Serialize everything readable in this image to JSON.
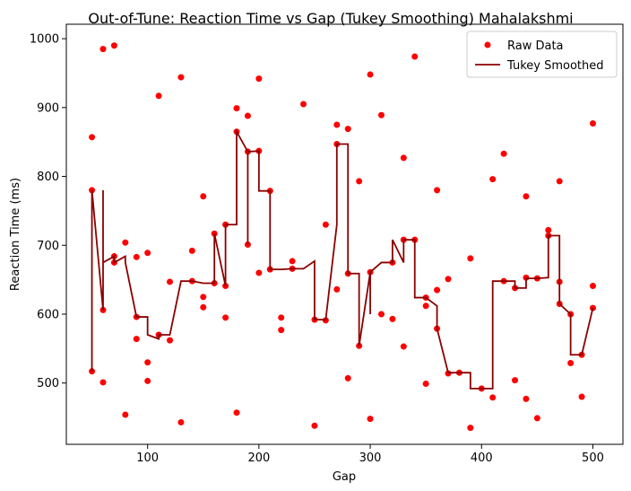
{
  "chart_data": {
    "type": "scatter",
    "title": "Out-of-Tune: Reaction Time vs Gap (Tukey Smoothing) Mahalakshmi",
    "xlabel": "Gap",
    "ylabel": "Reaction Time (ms)",
    "xlim": [
      27,
      527
    ],
    "ylim": [
      411,
      1021
    ],
    "xticks": [
      100,
      200,
      300,
      400,
      500
    ],
    "yticks": [
      500,
      600,
      700,
      800,
      900,
      1000
    ],
    "grid": false,
    "legend_position": "top-right",
    "colors": {
      "raw": "#ff0000",
      "smoothed": "#8b0000"
    },
    "series": [
      {
        "name": "Raw Data",
        "kind": "scatter",
        "points": [
          [
            50,
            857
          ],
          [
            50,
            780
          ],
          [
            50,
            517
          ],
          [
            60,
            985
          ],
          [
            60,
            606
          ],
          [
            60,
            501
          ],
          [
            70,
            990
          ],
          [
            70,
            684
          ],
          [
            70,
            675
          ],
          [
            80,
            704
          ],
          [
            80,
            454
          ],
          [
            90,
            683
          ],
          [
            90,
            596
          ],
          [
            90,
            564
          ],
          [
            100,
            689
          ],
          [
            100,
            530
          ],
          [
            100,
            503
          ],
          [
            110,
            917
          ],
          [
            110,
            570
          ],
          [
            120,
            647
          ],
          [
            120,
            562
          ],
          [
            130,
            944
          ],
          [
            130,
            443
          ],
          [
            140,
            692
          ],
          [
            140,
            648
          ],
          [
            150,
            771
          ],
          [
            150,
            625
          ],
          [
            150,
            610
          ],
          [
            160,
            717
          ],
          [
            160,
            645
          ],
          [
            170,
            730
          ],
          [
            170,
            641
          ],
          [
            170,
            595
          ],
          [
            180,
            899
          ],
          [
            180,
            865
          ],
          [
            180,
            457
          ],
          [
            190,
            888
          ],
          [
            190,
            836
          ],
          [
            190,
            701
          ],
          [
            200,
            942
          ],
          [
            200,
            837
          ],
          [
            200,
            660
          ],
          [
            210,
            779
          ],
          [
            210,
            665
          ],
          [
            220,
            595
          ],
          [
            220,
            577
          ],
          [
            230,
            677
          ],
          [
            230,
            666
          ],
          [
            240,
            905
          ],
          [
            250,
            592
          ],
          [
            250,
            438
          ],
          [
            260,
            730
          ],
          [
            260,
            591
          ],
          [
            270,
            875
          ],
          [
            270,
            847
          ],
          [
            270,
            636
          ],
          [
            280,
            869
          ],
          [
            280,
            659
          ],
          [
            280,
            507
          ],
          [
            290,
            793
          ],
          [
            290,
            554
          ],
          [
            300,
            948
          ],
          [
            300,
            661
          ],
          [
            300,
            448
          ],
          [
            310,
            889
          ],
          [
            310,
            600
          ],
          [
            320,
            675
          ],
          [
            320,
            593
          ],
          [
            330,
            827
          ],
          [
            330,
            708
          ],
          [
            330,
            553
          ],
          [
            340,
            974
          ],
          [
            340,
            708
          ],
          [
            350,
            624
          ],
          [
            350,
            612
          ],
          [
            350,
            499
          ],
          [
            360,
            780
          ],
          [
            360,
            635
          ],
          [
            360,
            579
          ],
          [
            370,
            651
          ],
          [
            370,
            514
          ],
          [
            380,
            515
          ],
          [
            390,
            681
          ],
          [
            390,
            435
          ],
          [
            400,
            492
          ],
          [
            410,
            796
          ],
          [
            410,
            479
          ],
          [
            420,
            833
          ],
          [
            420,
            648
          ],
          [
            430,
            638
          ],
          [
            430,
            504
          ],
          [
            440,
            771
          ],
          [
            440,
            653
          ],
          [
            440,
            477
          ],
          [
            450,
            652
          ],
          [
            450,
            449
          ],
          [
            460,
            722
          ],
          [
            460,
            714
          ],
          [
            470,
            793
          ],
          [
            470,
            647
          ],
          [
            470,
            615
          ],
          [
            480,
            600
          ],
          [
            480,
            529
          ],
          [
            490,
            541
          ],
          [
            490,
            480
          ],
          [
            500,
            877
          ],
          [
            500,
            641
          ],
          [
            500,
            609
          ]
        ]
      },
      {
        "name": "Tukey Smoothed",
        "kind": "line",
        "points": [
          [
            50,
            517
          ],
          [
            50,
            780
          ],
          [
            60,
            606
          ],
          [
            60,
            780
          ],
          [
            60,
            675
          ],
          [
            70,
            684
          ],
          [
            70,
            675
          ],
          [
            80,
            684
          ],
          [
            80,
            675
          ],
          [
            90,
            596
          ],
          [
            100,
            596
          ],
          [
            100,
            570
          ],
          [
            110,
            564
          ],
          [
            110,
            570
          ],
          [
            120,
            570
          ],
          [
            130,
            648
          ],
          [
            140,
            648
          ],
          [
            150,
            645
          ],
          [
            160,
            645
          ],
          [
            160,
            717
          ],
          [
            170,
            641
          ],
          [
            170,
            730
          ],
          [
            180,
            730
          ],
          [
            180,
            865
          ],
          [
            190,
            836
          ],
          [
            190,
            701
          ],
          [
            190,
            836
          ],
          [
            200,
            837
          ],
          [
            200,
            779
          ],
          [
            210,
            779
          ],
          [
            210,
            665
          ],
          [
            220,
            665
          ],
          [
            230,
            666
          ],
          [
            240,
            666
          ],
          [
            250,
            677
          ],
          [
            250,
            592
          ],
          [
            260,
            592
          ],
          [
            270,
            730
          ],
          [
            270,
            847
          ],
          [
            280,
            847
          ],
          [
            280,
            659
          ],
          [
            290,
            659
          ],
          [
            290,
            554
          ],
          [
            300,
            661
          ],
          [
            300,
            600
          ],
          [
            300,
            661
          ],
          [
            310,
            675
          ],
          [
            320,
            675
          ],
          [
            320,
            708
          ],
          [
            330,
            675
          ],
          [
            330,
            708
          ],
          [
            340,
            708
          ],
          [
            340,
            624
          ],
          [
            350,
            624
          ],
          [
            360,
            612
          ],
          [
            360,
            579
          ],
          [
            370,
            515
          ],
          [
            380,
            515
          ],
          [
            390,
            515
          ],
          [
            390,
            492
          ],
          [
            400,
            492
          ],
          [
            410,
            492
          ],
          [
            410,
            648
          ],
          [
            420,
            648
          ],
          [
            430,
            648
          ],
          [
            430,
            638
          ],
          [
            440,
            638
          ],
          [
            440,
            652
          ],
          [
            450,
            652
          ],
          [
            460,
            653
          ],
          [
            460,
            714
          ],
          [
            470,
            714
          ],
          [
            470,
            615
          ],
          [
            480,
            600
          ],
          [
            480,
            541
          ],
          [
            490,
            541
          ],
          [
            500,
            609
          ]
        ]
      }
    ]
  }
}
